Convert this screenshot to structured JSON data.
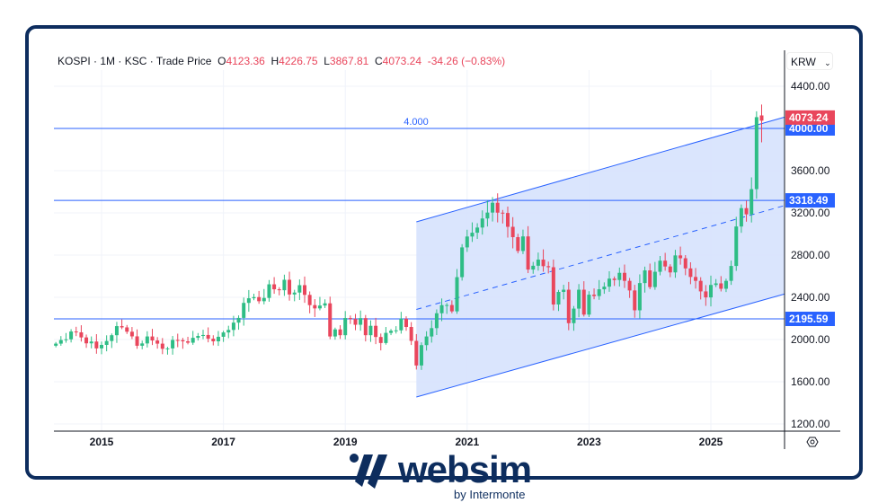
{
  "legend": {
    "symbol": "KOSPI",
    "interval": "1M",
    "exchange": "KSC",
    "price_type": "Trade Price",
    "o_label": "O",
    "o": "4123.36",
    "h_label": "H",
    "h": "4226.75",
    "l_label": "L",
    "l": "3867.81",
    "c_label": "C",
    "c": "4073.24",
    "change": "-34.26 (−0.83%)"
  },
  "currency": "KRW",
  "colors": {
    "up": "#2ebd85",
    "down": "#e9465c",
    "line": "#2962ff",
    "frame": "#0d2d5e",
    "channel_fill": "#d6e2fd"
  },
  "logo": {
    "name": "websim",
    "sub": "by Intermonte"
  },
  "chart_data": {
    "type": "candlestick",
    "title": "KOSPI · 1M · KSC",
    "start": "2014-04",
    "frequency": "monthly",
    "closes": [
      1961,
      1995,
      2002,
      2076,
      2068,
      2020,
      1964,
      1981,
      1916,
      1949,
      1986,
      2041,
      2127,
      2115,
      2074,
      2030,
      1941,
      1963,
      2029,
      1991,
      1961,
      1912,
      1916,
      1996,
      1994,
      1983,
      1970,
      2016,
      2034,
      2043,
      2008,
      1983,
      2026,
      2067,
      2091,
      2160,
      2205,
      2347,
      2391,
      2402,
      2363,
      2394,
      2523,
      2476,
      2467,
      2566,
      2427,
      2445,
      2515,
      2423,
      2326,
      2295,
      2322,
      2343,
      2029,
      2096,
      2041,
      2204,
      2195,
      2140,
      2203,
      2041,
      2130,
      2024,
      1967,
      2063,
      2083,
      2087,
      2197,
      2119,
      1987,
      1754,
      1947,
      2029,
      2108,
      2249,
      2326,
      2327,
      2267,
      2591,
      2873,
      2976,
      3012,
      3061,
      3147,
      3203,
      3296,
      3202,
      3199,
      3068,
      2970,
      2839,
      2977,
      2663,
      2699,
      2757,
      2695,
      2685,
      2332,
      2451,
      2472,
      2155,
      2293,
      2472,
      2236,
      2425,
      2412,
      2476,
      2501,
      2577,
      2564,
      2632,
      2556,
      2465,
      2277,
      2535,
      2655,
      2497,
      2642,
      2747,
      2692,
      2636,
      2797,
      2770,
      2674,
      2593,
      2556,
      2456,
      2399,
      2517,
      2532,
      2481,
      2556,
      2697,
      3071,
      3245,
      3186,
      3425,
      4107
    ],
    "last": {
      "open": 4123.36,
      "high": 4226.75,
      "low": 3867.81,
      "close": 4073.24
    },
    "x_ticks": [
      "2015",
      "2017",
      "2019",
      "2021",
      "2023",
      "2025"
    ],
    "y_ticks": [
      "1200.00",
      "1600.00",
      "2000.00",
      "2400.00",
      "2800.00",
      "3200.00",
      "3600.00",
      "4400.00"
    ],
    "ylim": [
      1150,
      4500
    ],
    "hlines": [
      {
        "value": 4000,
        "label": "4000.00"
      },
      {
        "value": 3318.49,
        "label": "3318.49"
      },
      {
        "value": 2195.59,
        "label": "2195.59"
      }
    ],
    "hline_text": "4.000",
    "last_price_label": "4073.24",
    "channel": {
      "start": "2020-03",
      "upper_start": 3115,
      "lower_start": 1455,
      "upper_end": 4128,
      "lower_end": 2451,
      "end": "2026-05"
    }
  }
}
